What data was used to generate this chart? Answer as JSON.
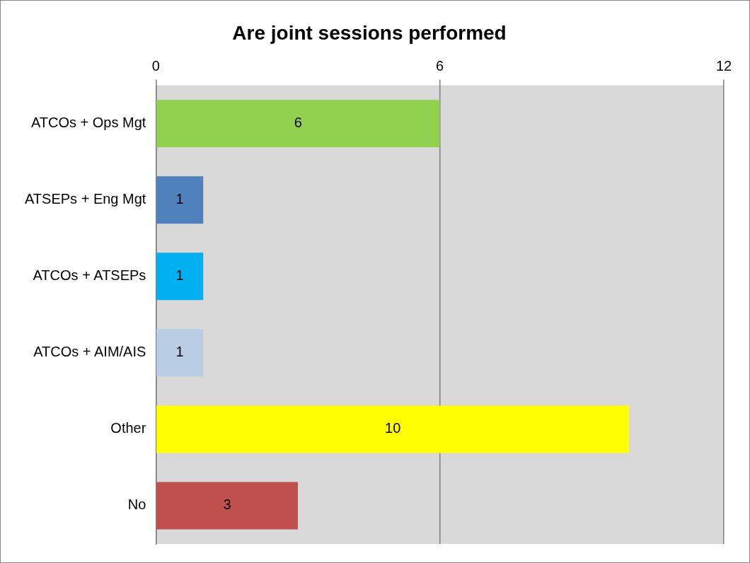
{
  "chart_data": {
    "type": "bar",
    "orientation": "horizontal",
    "title": "Are joint sessions performed",
    "categories": [
      "ATCOs + Ops Mgt",
      "ATSEPs + Eng Mgt",
      "ATCOs + ATSEPs",
      "ATCOs + AIM/AIS",
      "Other",
      "No"
    ],
    "values": [
      6,
      1,
      1,
      1,
      10,
      3
    ],
    "colors": [
      "#92d050",
      "#4f81bd",
      "#00b0f0",
      "#b9cde5",
      "#ffff00",
      "#c0504d"
    ],
    "xlim": [
      0,
      12
    ],
    "xticks": [
      0,
      6,
      12
    ],
    "grid": "x",
    "data_labels": true,
    "legend": false
  }
}
